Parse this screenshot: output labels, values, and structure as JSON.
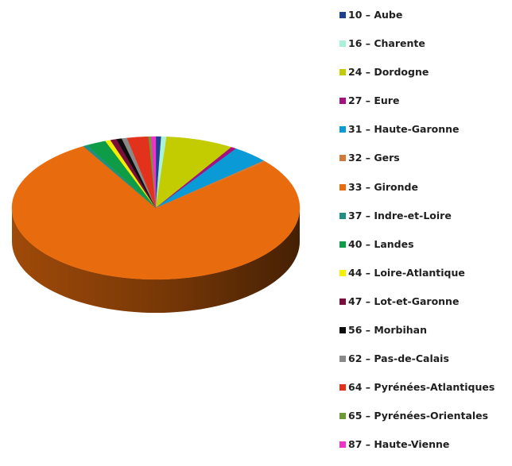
{
  "chart_data": {
    "type": "pie",
    "three_d": true,
    "legend_position": "right",
    "title": "",
    "categories": [
      "10 – Aube",
      "16 – Charente",
      "24 – Dordogne",
      "27 – Eure",
      "31 – Haute-Garonne",
      "32 – Gers",
      "33 – Gironde",
      "37 – Indre-et-Loire",
      "40 – Landes",
      "44 – Loire-Atlantique",
      "47 – Lot-et-Garonne",
      "56 – Morbihan",
      "62 – Pas-de-Calais",
      "64 – Pyrénées-Atlantiques",
      "65 – Pyrénées-Orientales",
      "87 – Haute-Vienne"
    ],
    "values": [
      0.6,
      0.6,
      7.6,
      0.6,
      4.1,
      0.3,
      77.8,
      0.5,
      2.2,
      0.6,
      0.7,
      0.6,
      0.6,
      2.4,
      0.3,
      0.5
    ],
    "colors": [
      "#1f3f8f",
      "#a9f2d8",
      "#c3cc00",
      "#a3127e",
      "#0a9ad6",
      "#d27a3a",
      "#e86c0d",
      "#1e8f82",
      "#0f9c47",
      "#f5ef00",
      "#7a0f3c",
      "#0d0d0d",
      "#8a8a8a",
      "#e2321c",
      "#6e9a36",
      "#f032c8"
    ]
  }
}
